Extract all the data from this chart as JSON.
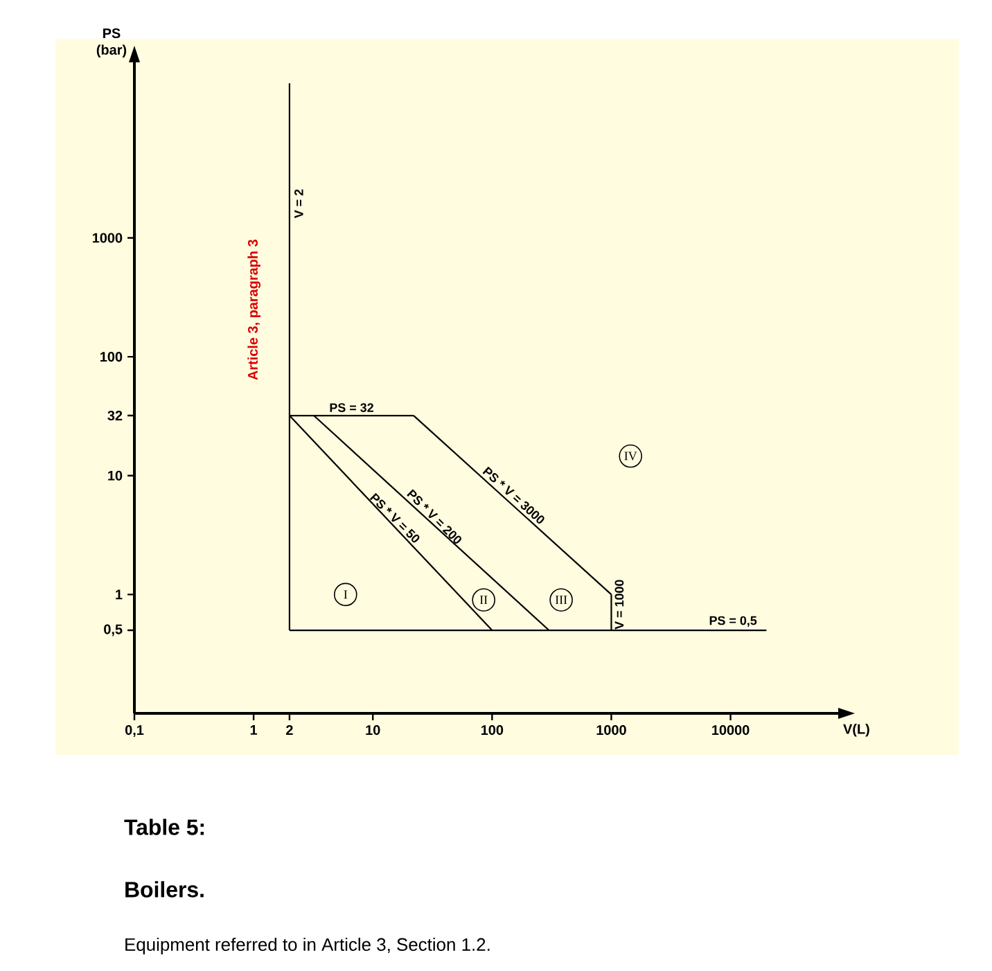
{
  "chart_data": {
    "type": "line",
    "title": "Table 5:",
    "subtitle": "Boilers.",
    "xlabel": "V(L)",
    "ylabel": "PS (bar)",
    "log": "xy",
    "marker": "none",
    "line_style": "solid",
    "xlim": [
      0.1,
      80000
    ],
    "ylim": [
      0.1,
      30000
    ],
    "xticks": [
      {
        "value": 0.1,
        "label": "0,1"
      },
      1,
      2,
      10,
      100,
      1000,
      10000
    ],
    "yticks": [
      {
        "value": 0.5,
        "label": "0,5"
      },
      1,
      10,
      32,
      100,
      1000
    ],
    "series": [
      {
        "name": "V = 2",
        "color": "#000000",
        "x": [
          2,
          2
        ],
        "values": [
          0.5,
          20000
        ]
      },
      {
        "name": "PS = 32",
        "color": "#000000",
        "x": [
          2,
          22
        ],
        "values": [
          32,
          32
        ]
      },
      {
        "color": "#000000",
        "x": [
          2,
          100
        ],
        "values": [
          32,
          0.5
        ]
      },
      {
        "color": "#000000",
        "x": [
          3.2,
          300
        ],
        "values": [
          32,
          0.5
        ]
      },
      {
        "name": "PS * V = 3000",
        "color": "#000000",
        "x": [
          22,
          1000
        ],
        "values": [
          32,
          1
        ]
      },
      {
        "name": "V = 1000",
        "color": "#000000",
        "x": [
          1000,
          1000
        ],
        "values": [
          0.5,
          1
        ]
      },
      {
        "name": "PS = 0,5",
        "color": "#000000",
        "x": [
          2,
          20000
        ],
        "values": [
          0.5,
          0.5
        ]
      }
    ],
    "annotations": [
      "Article 3, paragraph 3",
      {
        "text": "I",
        "x": 5.9,
        "y": 1
      },
      {
        "text": "II",
        "x": 85,
        "y": 0.9
      },
      {
        "text": "III",
        "x": 380,
        "y": 0.9
      },
      {
        "text": "IV",
        "x": 1450,
        "y": 14.6
      },
      "Equipment referred to in Article 3, Section 1.2.",
      {
        "text": "PS * V = 50",
        "x": 14,
        "y": 4
      },
      {
        "text": "PS * V = 200",
        "x": 30,
        "y": 4.1
      }
    ]
  }
}
